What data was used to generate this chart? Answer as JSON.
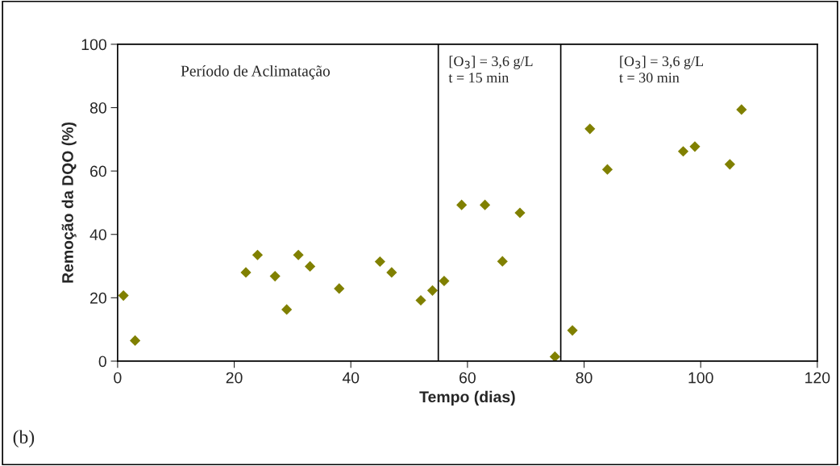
{
  "chart_data": {
    "type": "scatter",
    "xlabel": "Tempo (dias)",
    "ylabel": "Remoção da DQO (%)",
    "x": [
      1,
      3,
      22,
      24,
      27,
      29,
      31,
      33,
      38,
      45,
      47,
      52,
      54,
      56,
      59,
      63,
      66,
      69,
      75,
      78,
      81,
      84,
      97,
      99,
      105,
      107
    ],
    "series": [
      {
        "color": "#808000",
        "values": [
          20.7,
          6.5,
          28.0,
          33.5,
          26.8,
          16.3,
          33.5,
          29.9,
          22.9,
          31.4,
          28.0,
          19.2,
          22.3,
          25.3,
          49.3,
          49.3,
          31.5,
          46.8,
          1.4,
          9.7,
          73.3,
          60.5,
          66.2,
          67.7,
          62.1,
          79.4
        ]
      }
    ],
    "xlim": [
      0,
      120
    ],
    "xticks": [
      0,
      20,
      40,
      60,
      80,
      100,
      120
    ],
    "ylim": [
      0,
      100
    ],
    "yticks": [
      0,
      20,
      40,
      60,
      80,
      100
    ],
    "ref_lines": [
      {
        "axis": "x",
        "value": 55,
        "color": "#000000"
      },
      {
        "axis": "x",
        "value": 76,
        "color": "#000000"
      }
    ],
    "annotations": [
      "Período de Aclimatação",
      "[O$_{3}$] = 3,6 g/L\nt = 15 min",
      "[O$_{3}$] = 3,6 g/L\nt = 30 min",
      "(b)"
    ],
    "marker": "diamond",
    "grid": false,
    "legend": false
  }
}
